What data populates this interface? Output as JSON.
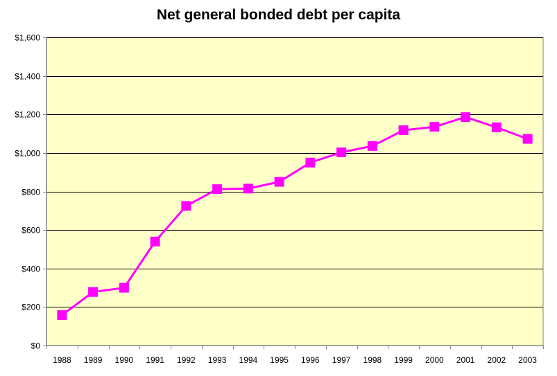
{
  "chart_data": {
    "type": "line",
    "title": "Net general bonded debt per capita",
    "xlabel": "",
    "ylabel": "",
    "categories": [
      "1988",
      "1989",
      "1990",
      "1991",
      "1992",
      "1993",
      "1994",
      "1995",
      "1996",
      "1997",
      "1998",
      "1999",
      "2000",
      "2001",
      "2002",
      "2003"
    ],
    "series": [
      {
        "values": [
          158,
          278,
          300,
          540,
          725,
          812,
          815,
          850,
          950,
          1003,
          1036,
          1118,
          1136,
          1186,
          1133,
          1073
        ]
      }
    ],
    "ylim": [
      0,
      1600
    ],
    "yticks": [
      0,
      200,
      400,
      600,
      800,
      1000,
      1200,
      1400,
      1600
    ],
    "ytick_labels": [
      "$0",
      "$200",
      "$400",
      "$600",
      "$800",
      "$1,000",
      "$1,200",
      "$1,400",
      "$1,600"
    ],
    "grid": true,
    "legend": "none",
    "colors": {
      "plot_background": "#ffffc8",
      "series_line": "#ff00ff",
      "gridline": "#000000"
    }
  }
}
